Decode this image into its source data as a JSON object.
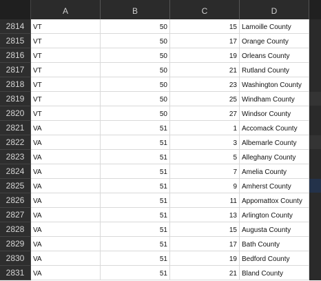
{
  "columns": [
    "A",
    "B",
    "C",
    "D"
  ],
  "rows": [
    {
      "num": "2814",
      "a": "VT",
      "b": "50",
      "c": "15",
      "d": "Lamoille County"
    },
    {
      "num": "2815",
      "a": "VT",
      "b": "50",
      "c": "17",
      "d": "Orange County"
    },
    {
      "num": "2816",
      "a": "VT",
      "b": "50",
      "c": "19",
      "d": "Orleans County"
    },
    {
      "num": "2817",
      "a": "VT",
      "b": "50",
      "c": "21",
      "d": "Rutland County"
    },
    {
      "num": "2818",
      "a": "VT",
      "b": "50",
      "c": "23",
      "d": "Washington County"
    },
    {
      "num": "2819",
      "a": "VT",
      "b": "50",
      "c": "25",
      "d": "Windham County"
    },
    {
      "num": "2820",
      "a": "VT",
      "b": "50",
      "c": "27",
      "d": "Windsor County"
    },
    {
      "num": "2821",
      "a": "VA",
      "b": "51",
      "c": "1",
      "d": "Accomack County"
    },
    {
      "num": "2822",
      "a": "VA",
      "b": "51",
      "c": "3",
      "d": "Albemarle County"
    },
    {
      "num": "2823",
      "a": "VA",
      "b": "51",
      "c": "5",
      "d": "Alleghany County"
    },
    {
      "num": "2824",
      "a": "VA",
      "b": "51",
      "c": "7",
      "d": "Amelia County"
    },
    {
      "num": "2825",
      "a": "VA",
      "b": "51",
      "c": "9",
      "d": "Amherst County"
    },
    {
      "num": "2826",
      "a": "VA",
      "b": "51",
      "c": "11",
      "d": "Appomattox County"
    },
    {
      "num": "2827",
      "a": "VA",
      "b": "51",
      "c": "13",
      "d": "Arlington County"
    },
    {
      "num": "2828",
      "a": "VA",
      "b": "51",
      "c": "15",
      "d": "Augusta County"
    },
    {
      "num": "2829",
      "a": "VA",
      "b": "51",
      "c": "17",
      "d": "Bath County"
    },
    {
      "num": "2830",
      "a": "VA",
      "b": "51",
      "c": "19",
      "d": "Bedford County"
    },
    {
      "num": "2831",
      "a": "VA",
      "b": "51",
      "c": "21",
      "d": "Bland County"
    }
  ]
}
